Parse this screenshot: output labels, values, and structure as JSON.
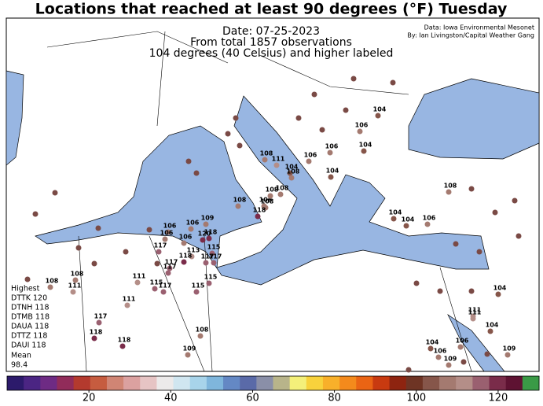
{
  "title": "Locations that reached at least 90 degrees (°F) Tuesday",
  "annotations": [
    "Date: 07-25-2023",
    "From total 1857 observations",
    "104 degrees (40 Celsius) and higher labeled"
  ],
  "credits": [
    "Data: Iowa Environmental Mesonet",
    "By: Ian Livingston/Capital Weather Gang"
  ],
  "stats": {
    "highest_label": "Highest",
    "highest": [
      "DTTK 120",
      "DTNH 118",
      "DTMB 118",
      "DAUA 118",
      "DTTZ 118",
      "DAUI 118"
    ],
    "mean_label": "Mean",
    "mean": 98.4
  },
  "colorbar": {
    "min": 0,
    "max": 130,
    "ticks": [
      20,
      40,
      60,
      80,
      100,
      120
    ],
    "colors": [
      "#2c1a6b",
      "#4b2583",
      "#6e2b84",
      "#912c5a",
      "#b43a2e",
      "#c65c3f",
      "#d08574",
      "#dba1a0",
      "#e6c4c4",
      "#eceaea",
      "#d0e6f0",
      "#a8d4ea",
      "#7fb6dc",
      "#6488c4",
      "#5a6aa8",
      "#8a8fa8",
      "#b8b48a",
      "#f4f07a",
      "#f8d23c",
      "#f8b02a",
      "#f48a1c",
      "#ea6414",
      "#c83a10",
      "#8e2410",
      "#6e3424",
      "#86564a",
      "#a47a70",
      "#b48e88",
      "#9a6070",
      "#7a2c4a",
      "#5e1232",
      "#3a9a46"
    ]
  },
  "stations": [
    104,
    106,
    106,
    104,
    106,
    104,
    108,
    111,
    104,
    108,
    108,
    104,
    106,
    104,
    108,
    108,
    106,
    118,
    108,
    108,
    109,
    106,
    106,
    106,
    118,
    120,
    106,
    117,
    115,
    113,
    118,
    117,
    117,
    117,
    117,
    111,
    115,
    117,
    115,
    115,
    108,
    108,
    111,
    111,
    117,
    118,
    118,
    108,
    109,
    104,
    111,
    111,
    104,
    104,
    106,
    106,
    109,
    109
  ]
}
